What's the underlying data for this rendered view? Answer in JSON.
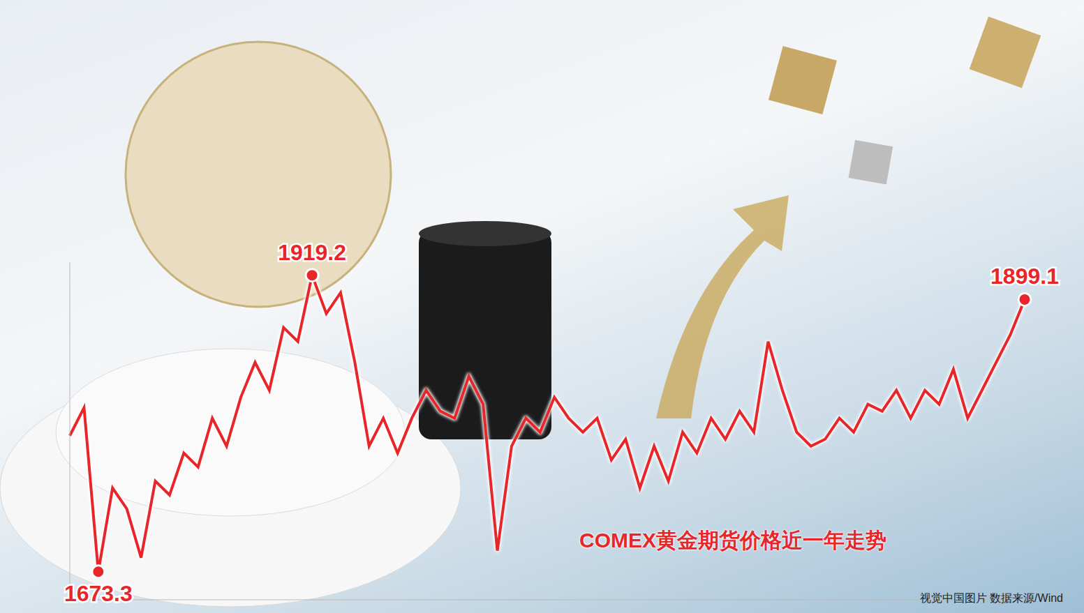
{
  "chart_data": {
    "type": "line",
    "title": "COMEX黄金期货价格近一年走势",
    "source": "视觉中国图片 数据来源/Wind",
    "categories": [
      null,
      null,
      null,
      null,
      null,
      null,
      null,
      null,
      null,
      null,
      null,
      null,
      null,
      null,
      null,
      null,
      null,
      null,
      null,
      null,
      null,
      null,
      null,
      null,
      null,
      null,
      null,
      null,
      null,
      null,
      null,
      null,
      null,
      null,
      null,
      null,
      null,
      null,
      null,
      null,
      null,
      null,
      null,
      null,
      null,
      null,
      null,
      null,
      null,
      null,
      null,
      null,
      null,
      null,
      null,
      null,
      null,
      null,
      null,
      null,
      null,
      null,
      null,
      null,
      null,
      null,
      null,
      null
    ],
    "values": [
      1786.1,
      1809.3,
      1673.3,
      1742.7,
      1725.4,
      1684.9,
      1748.5,
      1736.9,
      1771.7,
      1760.1,
      1800.6,
      1777.4,
      1818.0,
      1846.9,
      1823.7,
      1875.8,
      1864.2,
      1919.2,
      1887.4,
      1904.7,
      1846.9,
      1777.4,
      1800.6,
      1771.7,
      1800.6,
      1823.7,
      1806.4,
      1800.6,
      1835.3,
      1812.2,
      1690.7,
      1777.4,
      1800.6,
      1789.0,
      1818.0,
      1800.6,
      1789.0,
      1800.6,
      1765.9,
      1783.2,
      1742.7,
      1777.4,
      1748.5,
      1789.0,
      1771.7,
      1800.6,
      1783.2,
      1806.4,
      1789.0,
      1864.2,
      1823.7,
      1789.0,
      1777.4,
      1783.2,
      1800.6,
      1789.0,
      1812.2,
      1806.4,
      1823.7,
      1800.6,
      1823.7,
      1812.2,
      1841.1,
      1800.6,
      1823.7,
      1846.9,
      1870.0,
      1899.1
    ],
    "value_labels": [
      null,
      null,
      "1673.3",
      null,
      null,
      null,
      null,
      null,
      null,
      null,
      null,
      null,
      null,
      null,
      null,
      null,
      null,
      "1919.2",
      null,
      null,
      null,
      null,
      null,
      null,
      null,
      null,
      null,
      null,
      null,
      null,
      null,
      null,
      null,
      null,
      null,
      null,
      null,
      null,
      null,
      null,
      null,
      null,
      null,
      null,
      null,
      null,
      null,
      null,
      null,
      null,
      null,
      null,
      null,
      null,
      null,
      null,
      null,
      null,
      null,
      null,
      null,
      null,
      null,
      null,
      null,
      null,
      null,
      "1899.1"
    ],
    "color": "#e8262a",
    "ylim": [
      1650,
      1930
    ],
    "yticks": [],
    "tick_labels": false,
    "data_labels": true,
    "marker": "circle",
    "line_style": "solid",
    "grid": false
  }
}
